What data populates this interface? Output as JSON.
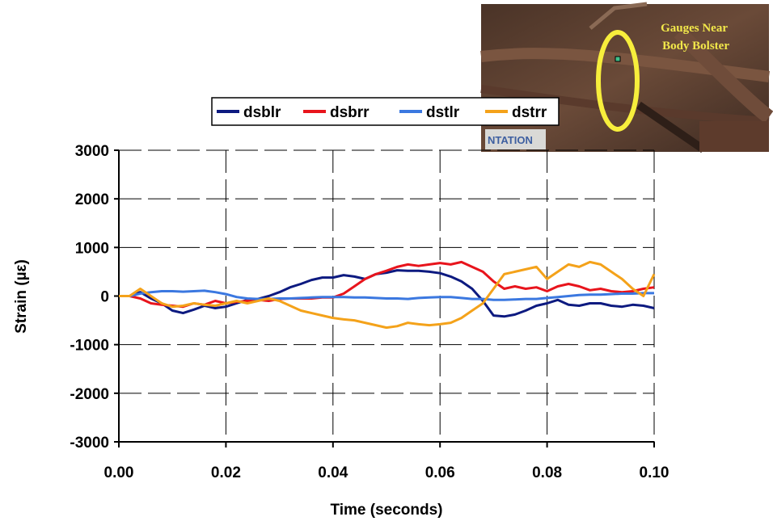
{
  "chart_data": {
    "type": "line",
    "title": "",
    "xlabel": "Time (seconds)",
    "ylabel": "Strain (µε)",
    "xlim": [
      0,
      0.1
    ],
    "ylim": [
      -3000,
      3000
    ],
    "x_ticks": [
      "0.00",
      "0.02",
      "0.04",
      "0.06",
      "0.08",
      "0.10"
    ],
    "y_ticks": [
      "3000",
      "2000",
      "1000",
      "0",
      "-1000",
      "-2000",
      "-3000"
    ],
    "grid": "dashed",
    "legend_position": "top",
    "x": [
      0.0,
      0.002,
      0.004,
      0.006,
      0.008,
      0.01,
      0.012,
      0.014,
      0.016,
      0.018,
      0.02,
      0.022,
      0.024,
      0.026,
      0.028,
      0.03,
      0.032,
      0.034,
      0.036,
      0.038,
      0.04,
      0.042,
      0.044,
      0.046,
      0.048,
      0.05,
      0.052,
      0.054,
      0.056,
      0.058,
      0.06,
      0.062,
      0.064,
      0.066,
      0.068,
      0.07,
      0.072,
      0.074,
      0.076,
      0.078,
      0.08,
      0.082,
      0.084,
      0.086,
      0.088,
      0.09,
      0.092,
      0.094,
      0.096,
      0.098,
      0.1
    ],
    "series": [
      {
        "name": "dsblr",
        "color": "#0d1a80",
        "values": [
          0,
          0,
          80,
          -50,
          -150,
          -300,
          -350,
          -280,
          -200,
          -250,
          -220,
          -150,
          -80,
          -60,
          0,
          80,
          180,
          250,
          330,
          380,
          380,
          430,
          400,
          350,
          450,
          480,
          530,
          520,
          520,
          500,
          470,
          400,
          300,
          150,
          -100,
          -400,
          -420,
          -380,
          -300,
          -200,
          -150,
          -80,
          -180,
          -200,
          -150,
          -150,
          -200,
          -220,
          -180,
          -200,
          -250
        ]
      },
      {
        "name": "dsbrr",
        "color": "#e8141c",
        "values": [
          0,
          0,
          -50,
          -150,
          -180,
          -200,
          -220,
          -150,
          -180,
          -100,
          -150,
          -120,
          -100,
          -80,
          -100,
          -60,
          -50,
          -50,
          -50,
          -30,
          -30,
          50,
          200,
          350,
          450,
          520,
          600,
          650,
          620,
          650,
          680,
          650,
          700,
          600,
          500,
          300,
          150,
          200,
          150,
          180,
          100,
          200,
          250,
          200,
          120,
          150,
          100,
          80,
          100,
          150,
          180
        ]
      },
      {
        "name": "dstlr",
        "color": "#3b78e0",
        "values": [
          0,
          0,
          50,
          80,
          100,
          100,
          90,
          100,
          110,
          80,
          40,
          -20,
          -50,
          -60,
          -60,
          -50,
          -50,
          -40,
          -30,
          -20,
          -20,
          -20,
          -30,
          -30,
          -40,
          -50,
          -50,
          -60,
          -40,
          -30,
          -20,
          -20,
          -40,
          -60,
          -60,
          -80,
          -80,
          -70,
          -60,
          -60,
          -40,
          -20,
          0,
          20,
          30,
          30,
          40,
          50,
          50,
          60,
          60
        ]
      },
      {
        "name": "dstrr",
        "color": "#f4a21a",
        "values": [
          0,
          0,
          150,
          0,
          -150,
          -220,
          -200,
          -150,
          -180,
          -200,
          -150,
          -100,
          -150,
          -100,
          -50,
          -100,
          -200,
          -300,
          -350,
          -400,
          -450,
          -480,
          -500,
          -550,
          -600,
          -650,
          -620,
          -550,
          -580,
          -600,
          -580,
          -550,
          -450,
          -300,
          -150,
          150,
          450,
          500,
          550,
          600,
          350,
          500,
          650,
          600,
          700,
          650,
          500,
          350,
          150,
          0,
          450
        ]
      }
    ]
  },
  "photo": {
    "label_line1": "Gauges Near",
    "label_line2": "Body Bolster",
    "sign_text": "NTATION"
  }
}
